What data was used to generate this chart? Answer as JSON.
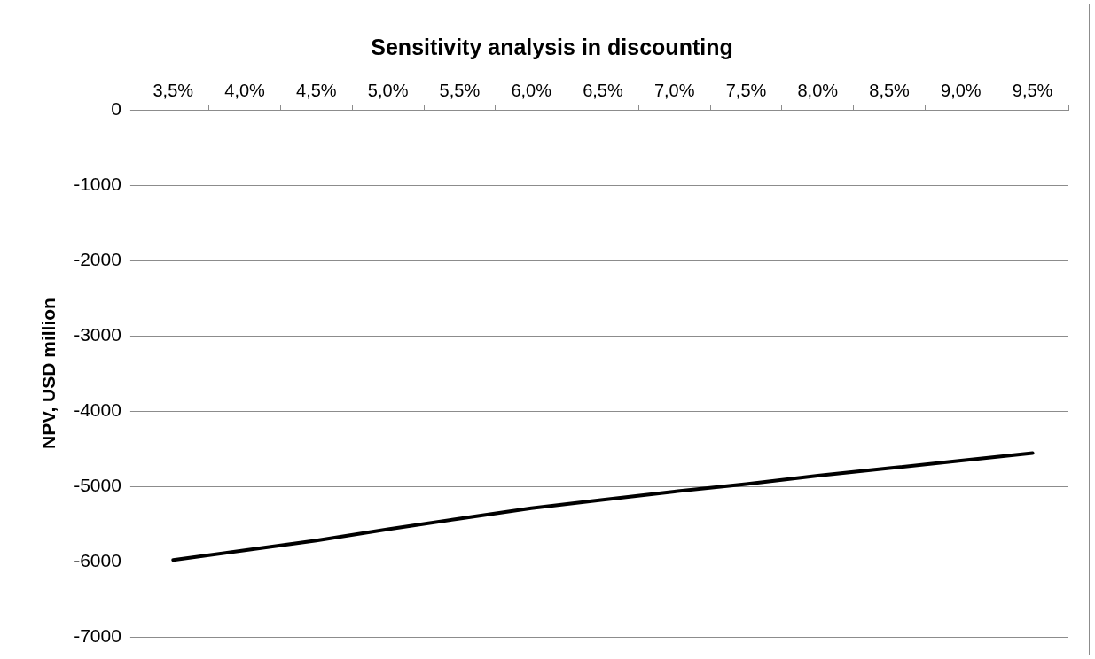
{
  "chart_data": {
    "type": "line",
    "title": "Sensitivity analysis in discounting",
    "ylabel": "NPV, USD million",
    "categories": [
      "3,5%",
      "4,0%",
      "4,5%",
      "5,0%",
      "5,5%",
      "6,0%",
      "6,5%",
      "7,0%",
      "7,5%",
      "8,0%",
      "8,5%",
      "9,0%",
      "9,5%"
    ],
    "series": [
      {
        "color": "#000000",
        "values": [
          -5980,
          -5850,
          -5720,
          -5570,
          -5430,
          -5290,
          -5180,
          -5070,
          -4970,
          -4860,
          -4760,
          -4660,
          -4560
        ]
      }
    ],
    "ylim": [
      -7000,
      0
    ],
    "yticks": [
      0,
      -1000,
      -2000,
      -3000,
      -4000,
      -5000,
      -6000,
      -7000
    ],
    "grid": "y",
    "legend": false,
    "marker": "none",
    "line_style": "solid"
  }
}
